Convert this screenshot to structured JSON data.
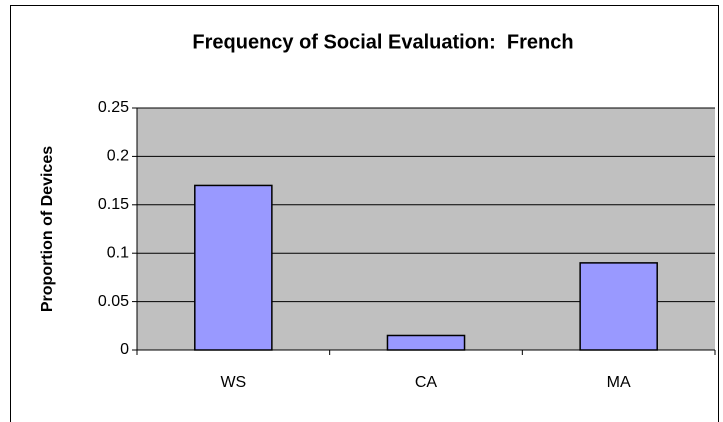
{
  "chart_data": {
    "type": "bar",
    "title": "Frequency of Social Evaluation:  French",
    "y_axis_label": "Proportion of Devices",
    "categories": [
      "WS",
      "CA",
      "MA"
    ],
    "values": [
      0.17,
      0.015,
      0.09
    ],
    "color": "#9999ff",
    "ylim": [
      0,
      0.25
    ],
    "yticks": [
      0,
      0.05,
      0.1,
      0.15,
      0.2,
      0.25
    ],
    "grid": true
  }
}
